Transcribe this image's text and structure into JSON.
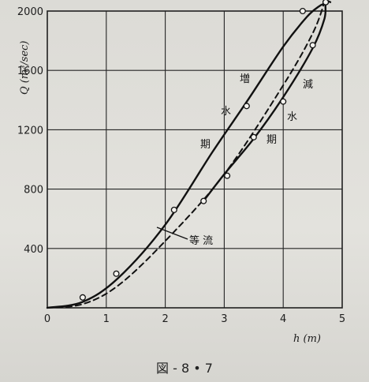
{
  "chart_data": {
    "type": "line",
    "title": "",
    "xlabel": "h (m)",
    "ylabel": "Q (m³/sec)",
    "xlim": [
      0,
      5
    ],
    "ylim": [
      0,
      2000
    ],
    "x_ticks": [
      "0",
      "1",
      "2",
      "3",
      "4",
      "5"
    ],
    "y_ticks": [
      "400",
      "800",
      "1200",
      "1600",
      "2000"
    ],
    "grid": true,
    "series": [
      {
        "name": "増水期",
        "line_style": "solid",
        "points": [
          [
            0.0,
            0
          ],
          [
            0.6,
            40
          ],
          [
            1.2,
            200
          ],
          [
            2.0,
            560
          ],
          [
            2.8,
            1050
          ],
          [
            3.4,
            1400
          ],
          [
            4.0,
            1760
          ],
          [
            4.4,
            1960
          ],
          [
            4.6,
            2030
          ],
          [
            4.7,
            2050
          ]
        ],
        "marked_points": [
          [
            0.6,
            70
          ],
          [
            1.17,
            230
          ],
          [
            2.15,
            660
          ],
          [
            3.38,
            1360
          ],
          [
            4.33,
            2000
          ],
          [
            4.72,
            2060
          ]
        ]
      },
      {
        "name": "減水期",
        "line_style": "solid",
        "points": [
          [
            2.65,
            720
          ],
          [
            3.0,
            900
          ],
          [
            3.5,
            1140
          ],
          [
            4.0,
            1420
          ],
          [
            4.5,
            1750
          ],
          [
            4.7,
            1950
          ],
          [
            4.72,
            2060
          ],
          [
            4.8,
            2060
          ]
        ],
        "marked_points": [
          [
            2.65,
            720
          ],
          [
            3.05,
            890
          ],
          [
            3.5,
            1150
          ],
          [
            4.0,
            1390
          ],
          [
            4.5,
            1770
          ],
          [
            4.72,
            2060
          ]
        ]
      },
      {
        "name": "等流",
        "line_style": "dashed",
        "points": [
          [
            0.0,
            0
          ],
          [
            0.6,
            25
          ],
          [
            1.2,
            150
          ],
          [
            2.0,
            450
          ],
          [
            3.0,
            900
          ],
          [
            4.0,
            1500
          ],
          [
            4.5,
            1850
          ],
          [
            4.7,
            2060
          ]
        ]
      }
    ],
    "annotations": [
      "増",
      "水",
      "期",
      "減",
      "水",
      "期",
      "等 流"
    ]
  },
  "labels": {
    "x_axis": "h (m)",
    "y_axis": "Q (m³/sec)",
    "rising_1": "増",
    "rising_2": "水",
    "rising_3": "期",
    "falling_1": "減",
    "falling_2": "水",
    "falling_3": "期",
    "uniform": "等 流",
    "caption": "図 - 8 • 7"
  }
}
